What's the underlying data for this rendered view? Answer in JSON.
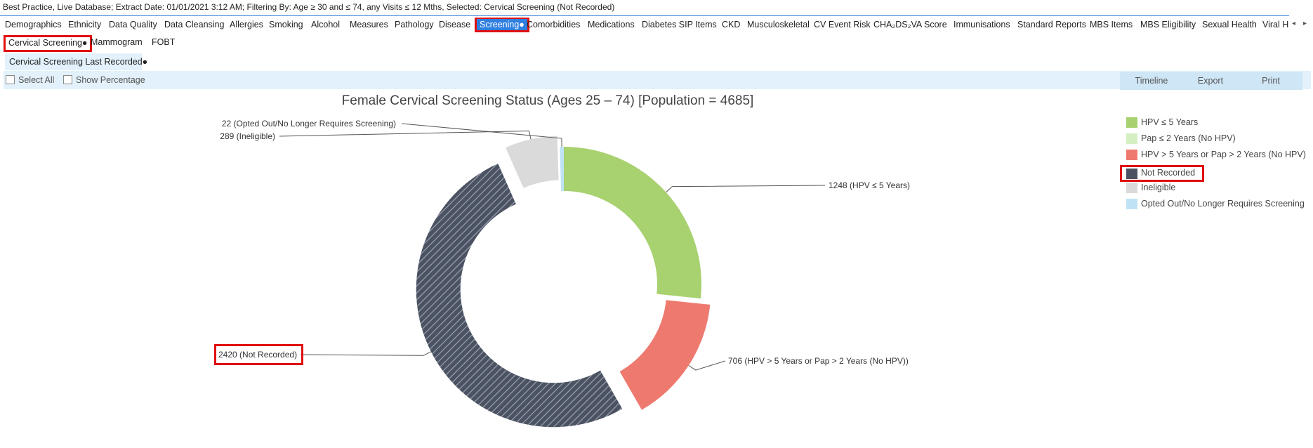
{
  "header": {
    "text": "Best Practice, Live Database; Extract Date: 01/01/2021 3:12 AM; Filtering By: Age ≥ 30 and ≤ 74, any Visits ≤ 12 Mths, Selected: Cervical Screening (Not Recorded)"
  },
  "tabs": [
    "Demographics",
    "Ethnicity",
    "Data Quality",
    "Data Cleansing",
    "Allergies",
    "Smoking",
    "Alcohol",
    "Measures",
    "Pathology",
    "Disease",
    "Screening●",
    "Comorbidities",
    "Medications",
    "Diabetes SIP Items",
    "CKD",
    "Musculoskeletal",
    "CV Event Risk",
    "CHA₂DS₂VA Score",
    "Immunisations",
    "Standard Reports",
    "MBS Items",
    "MBS Eligibility",
    "Sexual Health",
    "Viral H"
  ],
  "selected_tab": "Screening●",
  "tab_scroll": {
    "left": "◂",
    "right": "▸"
  },
  "subtabs": [
    "Cervical Screening●",
    "Mammogram",
    "FOBT"
  ],
  "subsubtab": "Cervical Screening Last Recorded●",
  "toolbar": {
    "select_all": "Select All",
    "show_percentage": "Show Percentage",
    "timeline": "Timeline",
    "export": "Export",
    "print": "Print"
  },
  "chart_data": {
    "type": "pie",
    "style": "donut",
    "title": "Female Cervical Screening Status (Ages 25 – 74) [Population = 4685]",
    "slices": [
      {
        "name": "HPV ≤ 5 Years",
        "value": 1248,
        "label": "1248 (HPV ≤ 5 Years)",
        "color": "#a8d170",
        "exploded": false,
        "hatched": false
      },
      {
        "name": "Pap ≤ 2 Years (No HPV)",
        "value": 0,
        "label": "",
        "color": "#d4f0c3",
        "exploded": false,
        "hatched": false
      },
      {
        "name": "HPV > 5 Years or Pap > 2 Years (No HPV)",
        "value": 706,
        "label": "706 (HPV > 5 Years or Pap > 2 Years (No HPV))",
        "color": "#ee7a6f",
        "exploded": true,
        "hatched": false
      },
      {
        "name": "Not Recorded",
        "value": 2420,
        "label": "2420 (Not Recorded)",
        "color": "#4b5261",
        "exploded": true,
        "hatched": true
      },
      {
        "name": "Ineligible",
        "value": 289,
        "label": "289 (Ineligible)",
        "color": "#dadada",
        "exploded": true,
        "hatched": false
      },
      {
        "name": "Opted Out/No Longer Requires Screening",
        "value": 22,
        "label": "22 (Opted Out/No Longer Requires Screening)",
        "color": "#bfe3f5",
        "exploded": false,
        "hatched": false
      }
    ],
    "legend": {
      "placement": "right",
      "highlighted": "Not Recorded"
    }
  },
  "colors": {
    "selection_highlight": "#e01010",
    "selected_tab_bg": "#2f7fe0",
    "toolbar_bg": "#e2f1fb"
  }
}
